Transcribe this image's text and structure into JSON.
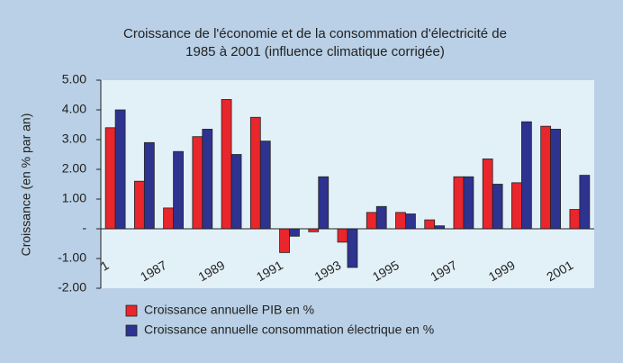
{
  "chart_data": {
    "type": "bar",
    "title": [
      "Croissance de l'économie et de la consommation d'électricité de",
      "1985 à 2001 (influence climatique corrigée)"
    ],
    "y_label": "Croissance (en % par an)",
    "categories": [
      "1",
      null,
      "1987",
      null,
      "1989",
      null,
      "1991",
      null,
      "1993",
      null,
      "1995",
      null,
      "1997",
      null,
      "1999",
      null,
      "2001"
    ],
    "series": [
      {
        "name": "Croissance annuelle PIB en %",
        "color": "#e8262c",
        "values": [
          3.4,
          1.6,
          0.7,
          3.1,
          4.35,
          3.75,
          -0.8,
          -0.1,
          -0.45,
          0.55,
          0.55,
          0.3,
          1.75,
          2.35,
          1.55,
          3.45,
          0.65
        ]
      },
      {
        "name": "Croissance annuelle consommation électrique en %",
        "color": "#2e3390",
        "values": [
          4.0,
          2.9,
          2.6,
          3.35,
          2.5,
          2.95,
          -0.25,
          1.75,
          -1.3,
          0.75,
          0.5,
          0.1,
          1.75,
          1.5,
          3.6,
          3.35,
          1.8
        ]
      }
    ],
    "ylim": [
      -2,
      5
    ],
    "yticks": [
      {
        "value": 5,
        "label": "5.00"
      },
      {
        "value": 4,
        "label": "4.00"
      },
      {
        "value": 3,
        "label": "3.00"
      },
      {
        "value": 2,
        "label": "2.00"
      },
      {
        "value": 1,
        "label": "1.00"
      },
      {
        "value": 0,
        "label": "-"
      },
      {
        "value": -1,
        "label": "-1.00"
      },
      {
        "value": -2,
        "label": "-2.00"
      }
    ],
    "legend": "bottom"
  }
}
